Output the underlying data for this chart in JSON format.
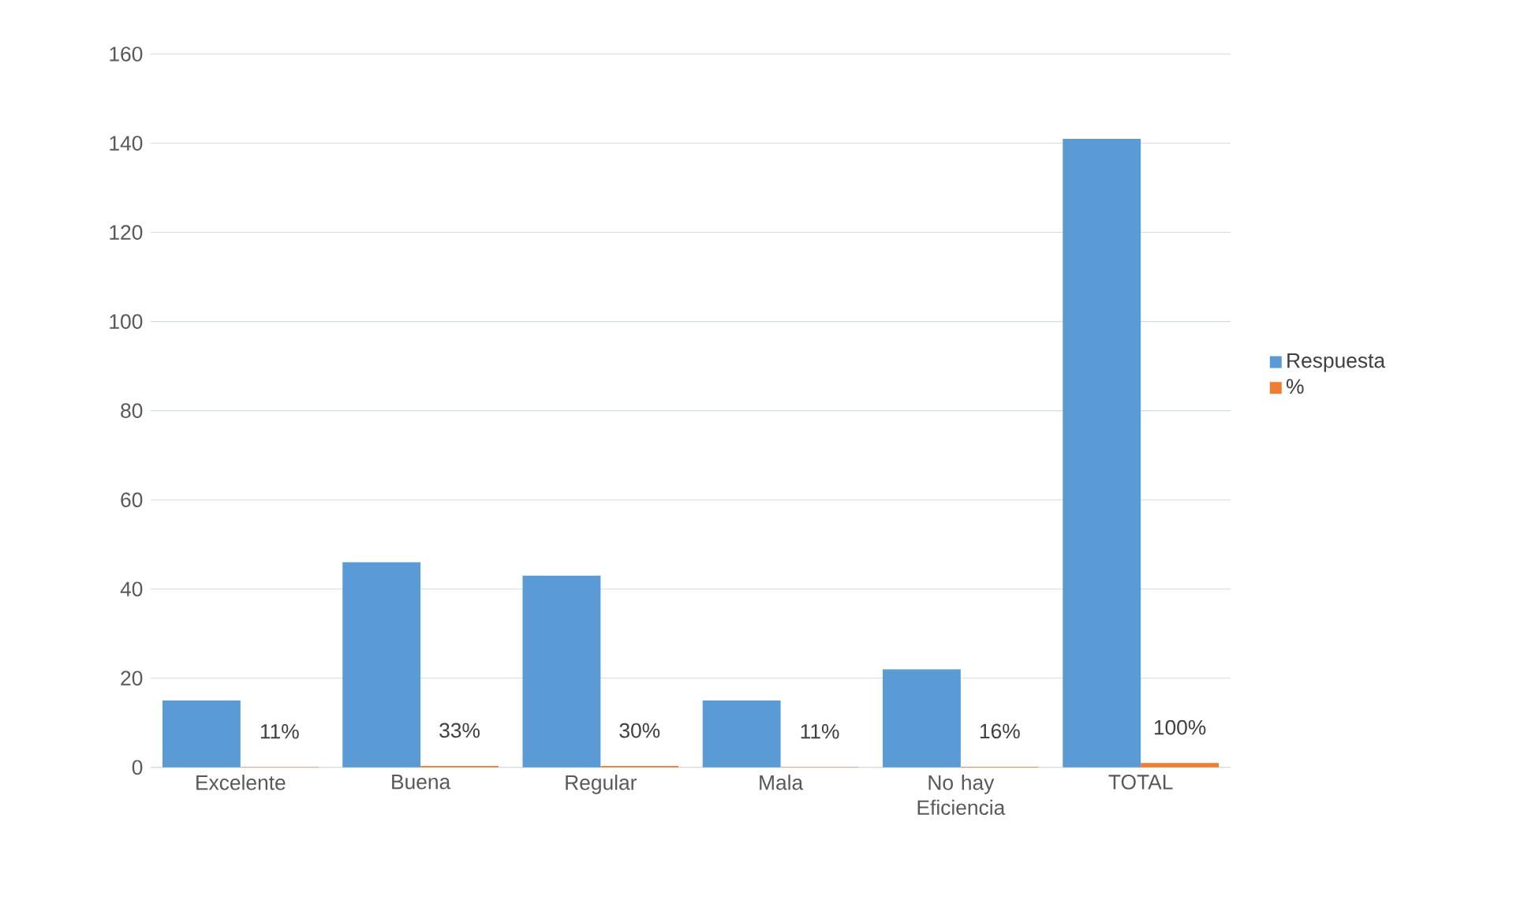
{
  "chart_data": {
    "type": "bar",
    "categories": [
      "Excelente",
      "Buena",
      "Regular",
      "Mala",
      "No hay Eficiencia",
      "TOTAL"
    ],
    "series": [
      {
        "name": "Respuesta",
        "color": "#5b9bd5",
        "values": [
          15,
          46,
          43,
          15,
          22,
          141
        ]
      },
      {
        "name": "%",
        "color": "#ed7d31",
        "values": [
          0.11,
          0.33,
          0.3,
          0.11,
          0.16,
          1.0
        ],
        "value_labels": [
          "11%",
          "33%",
          "30%",
          "11%",
          "16%",
          "100%"
        ]
      }
    ],
    "ylim": [
      0,
      160
    ],
    "yticks": [
      0,
      20,
      40,
      60,
      80,
      100,
      120,
      140,
      160
    ],
    "grid": "y",
    "legend": "right"
  }
}
